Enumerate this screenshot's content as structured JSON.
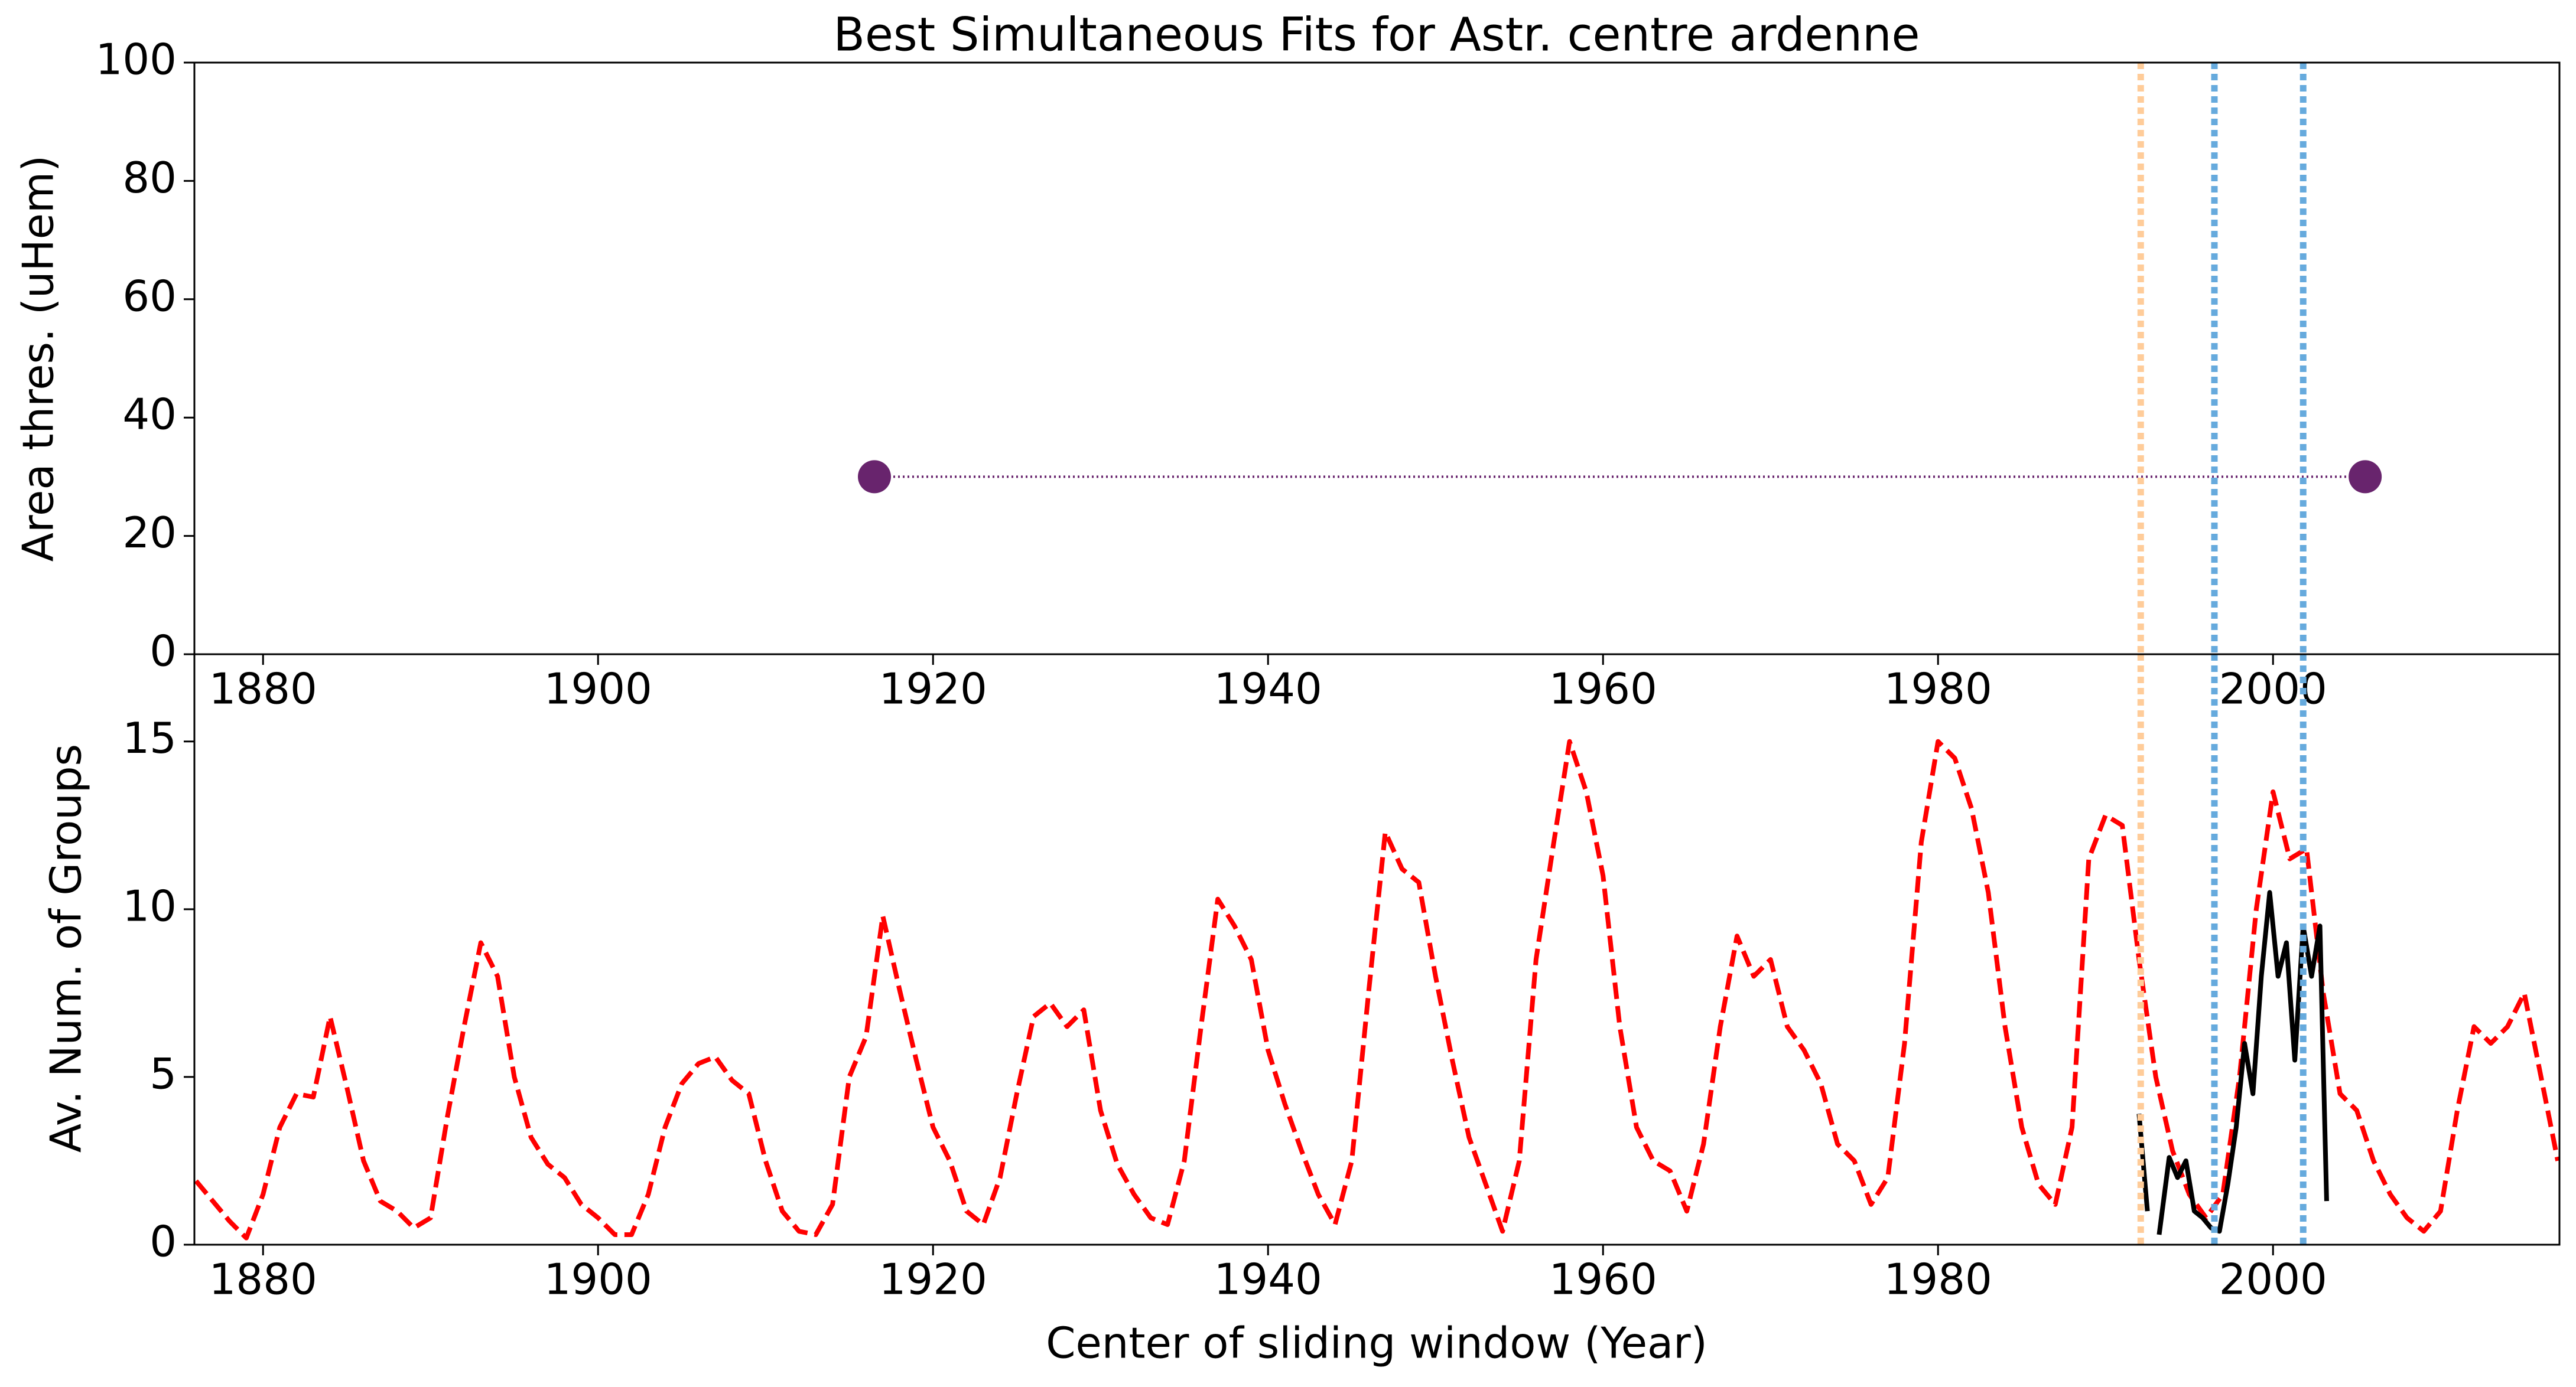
{
  "chart_data": [
    {
      "type": "scatter",
      "title": "Best Simultaneous Fits for Astr. centre ardenne",
      "ylabel": "Area thres. (uHem)",
      "xlim": [
        1875.9,
        2017.1
      ],
      "xticks": [
        1880,
        1900,
        1920,
        1940,
        1960,
        1980,
        2000
      ],
      "ylim": [
        0,
        100
      ],
      "yticks": [
        0,
        20,
        40,
        60,
        80,
        100
      ],
      "series": [
        {
          "color": "#68246d",
          "x": [
            1916.5,
            2005.5
          ],
          "values": [
            30,
            30
          ]
        }
      ],
      "vlines": [
        {
          "x": 1992.1,
          "color": "#ffcc99"
        },
        {
          "x": 1996.5,
          "color": "#66aadd"
        },
        {
          "x": 2001.8,
          "color": "#66aadd"
        }
      ]
    },
    {
      "type": "line",
      "xlabel": "Center of sliding window (Year)",
      "ylabel": "Av. Num. of Groups",
      "xlim": [
        1875.9,
        2017.1
      ],
      "xticks": [
        1880,
        1900,
        1920,
        1940,
        1960,
        1980,
        2000
      ],
      "ylim": [
        0,
        17.6
      ],
      "yticks": [
        0,
        5,
        10,
        15
      ],
      "series": [
        {
          "color": "#ff0000",
          "style": "dashed",
          "x": [
            1876,
            1877,
            1878,
            1879,
            1880,
            1881,
            1882,
            1883,
            1884,
            1885,
            1886,
            1887,
            1888,
            1889,
            1890,
            1891,
            1892,
            1893,
            1894,
            1895,
            1896,
            1897,
            1898,
            1899,
            1900,
            1901,
            1902,
            1903,
            1904,
            1905,
            1906,
            1907,
            1908,
            1909,
            1910,
            1911,
            1912,
            1913,
            1914,
            1915,
            1916,
            1917,
            1918,
            1919,
            1920,
            1921,
            1922,
            1923,
            1924,
            1925,
            1926,
            1927,
            1928,
            1929,
            1930,
            1931,
            1932,
            1933,
            1934,
            1935,
            1936,
            1937,
            1938,
            1939,
            1940,
            1941,
            1942,
            1943,
            1944,
            1945,
            1946,
            1947,
            1948,
            1949,
            1950,
            1951,
            1952,
            1953,
            1954,
            1955,
            1956,
            1957,
            1958,
            1959,
            1960,
            1961,
            1962,
            1963,
            1964,
            1965,
            1966,
            1967,
            1968,
            1969,
            1970,
            1971,
            1972,
            1973,
            1974,
            1975,
            1976,
            1977,
            1978,
            1979,
            1980,
            1981,
            1982,
            1983,
            1984,
            1985,
            1986,
            1987,
            1988,
            1989,
            1990,
            1991,
            1992,
            1993,
            1994,
            1995,
            1996,
            1997,
            1998,
            1999,
            2000,
            2001,
            2002,
            2003,
            2004,
            2005,
            2006,
            2007,
            2008,
            2009,
            2010,
            2011,
            2012,
            2013,
            2014,
            2015,
            2016,
            2017
          ],
          "values": [
            1.9,
            1.3,
            0.7,
            0.2,
            1.5,
            3.5,
            4.5,
            4.4,
            6.8,
            4.7,
            2.5,
            1.3,
            1.0,
            0.5,
            0.8,
            3.8,
            6.5,
            9.0,
            8.0,
            5.0,
            3.2,
            2.4,
            2.0,
            1.2,
            0.8,
            0.3,
            0.3,
            1.5,
            3.5,
            4.8,
            5.4,
            5.6,
            4.9,
            4.5,
            2.5,
            1.0,
            0.4,
            0.3,
            1.2,
            5.0,
            6.2,
            9.8,
            7.6,
            5.5,
            3.5,
            2.5,
            1.0,
            0.6,
            2.0,
            4.5,
            6.8,
            7.2,
            6.5,
            7.0,
            4.0,
            2.4,
            1.5,
            0.8,
            0.6,
            2.5,
            6.5,
            10.3,
            9.5,
            8.5,
            5.8,
            4.2,
            2.8,
            1.5,
            0.6,
            2.5,
            7.5,
            12.3,
            11.2,
            10.8,
            8.0,
            5.5,
            3.2,
            1.8,
            0.4,
            2.5,
            8.5,
            11.8,
            15.0,
            13.5,
            11.0,
            6.5,
            3.5,
            2.5,
            2.2,
            1.0,
            3.0,
            6.5,
            9.2,
            8.0,
            8.5,
            6.5,
            5.8,
            4.8,
            3.0,
            2.5,
            1.2,
            2.0,
            6.0,
            12.0,
            15.0,
            14.5,
            13.0,
            10.5,
            6.5,
            3.5,
            1.8,
            1.2,
            3.5,
            11.5,
            12.8,
            12.5,
            8.5,
            5.0,
            2.8,
            1.5,
            0.8,
            1.5,
            5.0,
            10.0,
            13.5,
            11.5,
            11.8,
            7.5,
            4.5,
            4.0,
            2.5,
            1.5,
            0.8,
            0.4,
            1.0,
            4.0,
            6.5,
            6.0,
            6.5,
            7.5,
            5.0,
            2.5
          ]
        },
        {
          "color": "#000000",
          "style": "solid",
          "x": [
            1992.0,
            1992.5,
            1992.8,
            1993.2,
            1993.8,
            1994.3,
            1994.8,
            1995.3,
            1995.8,
            1996.3,
            1996.8,
            1997.3,
            1997.8,
            1998.3,
            1998.8,
            1999.3,
            1999.8,
            2000.3,
            2000.8,
            2001.3,
            2001.8,
            2002.3,
            2002.8,
            2003.2
          ],
          "values": [
            3.9,
            1.0,
            null,
            0.3,
            2.6,
            2.0,
            2.5,
            1.0,
            0.8,
            0.5,
            0.4,
            1.8,
            3.5,
            6.0,
            4.5,
            8.0,
            10.5,
            8.0,
            9.0,
            5.5,
            9.5,
            8.0,
            9.5,
            1.3
          ]
        }
      ],
      "vlines": [
        {
          "x": 1992.1,
          "color": "#ffcc99"
        },
        {
          "x": 1996.5,
          "color": "#66aadd"
        },
        {
          "x": 2001.8,
          "color": "#66aadd"
        }
      ]
    }
  ]
}
